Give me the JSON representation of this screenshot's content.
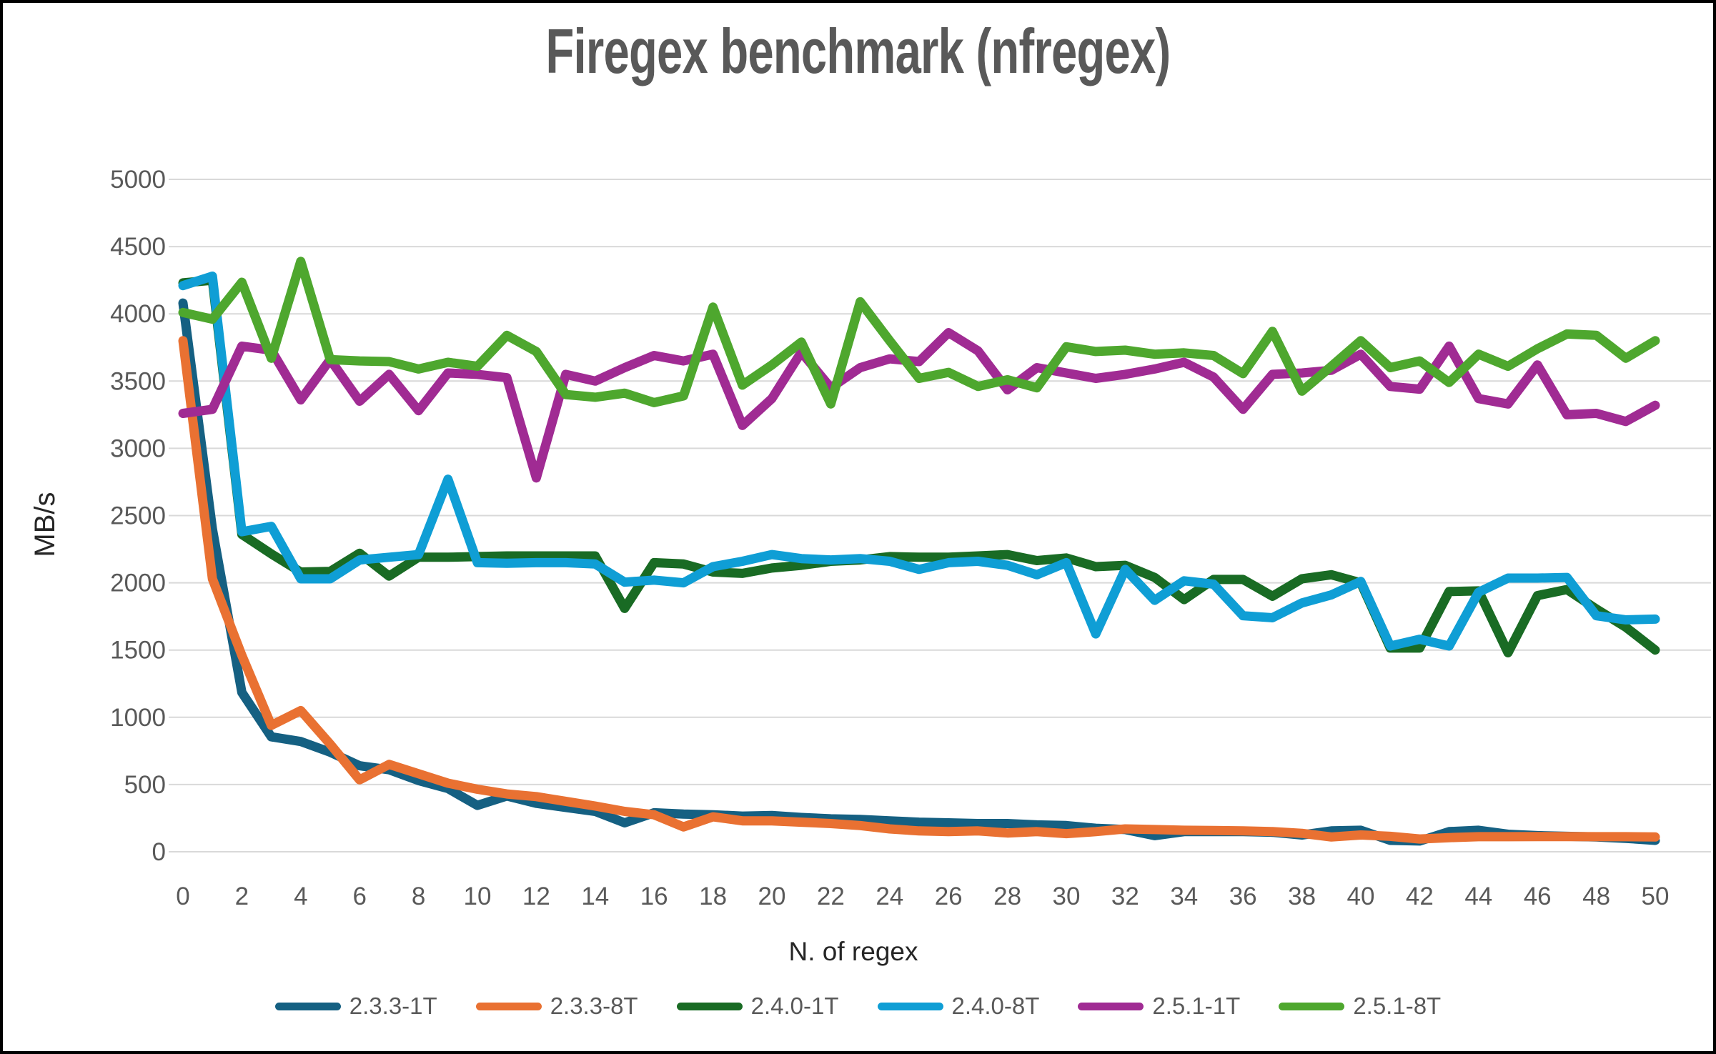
{
  "styles": {
    "background": "#FFFFFF",
    "frame_border_color": "#000000",
    "title_color": "#595959",
    "tick_label_color": "#595959",
    "axis_title_color": "#262626",
    "grid_color": "#D9D9D9"
  },
  "chart_data": {
    "type": "line",
    "title": "Firegex benchmark (nfregex)",
    "xlabel": "N. of regex",
    "ylabel": "MB/s",
    "xlim": [
      0,
      50
    ],
    "ylim": [
      0,
      5000
    ],
    "xticks": [
      0,
      2,
      4,
      6,
      8,
      10,
      12,
      14,
      16,
      18,
      20,
      22,
      24,
      26,
      28,
      30,
      32,
      34,
      36,
      38,
      40,
      42,
      44,
      46,
      48,
      50
    ],
    "yticks": [
      0,
      500,
      1000,
      1500,
      2000,
      2500,
      3000,
      3500,
      4000,
      4500,
      5000
    ],
    "grid": "horizontal",
    "legend_position": "bottom",
    "x": [
      0,
      1,
      2,
      3,
      4,
      5,
      6,
      7,
      8,
      9,
      10,
      11,
      12,
      13,
      14,
      15,
      16,
      17,
      18,
      19,
      20,
      21,
      22,
      23,
      24,
      25,
      26,
      27,
      28,
      29,
      30,
      31,
      32,
      33,
      34,
      35,
      36,
      37,
      38,
      39,
      40,
      41,
      42,
      43,
      44,
      45,
      46,
      47,
      48,
      49,
      50
    ],
    "series": [
      {
        "name": "2.3.3-1T",
        "color": "#156082",
        "values": [
          4080,
          2400,
          1185,
          855,
          820,
          740,
          640,
          610,
          530,
          470,
          345,
          415,
          360,
          330,
          300,
          215,
          290,
          280,
          275,
          265,
          270,
          255,
          245,
          240,
          230,
          220,
          215,
          210,
          210,
          200,
          195,
          175,
          165,
          120,
          150,
          150,
          150,
          145,
          125,
          155,
          160,
          85,
          80,
          150,
          160,
          130,
          120,
          115,
          110,
          100,
          85
        ]
      },
      {
        "name": "2.3.3-8T",
        "color": "#E97132",
        "values": [
          3800,
          2030,
          1460,
          940,
          1050,
          800,
          535,
          650,
          580,
          510,
          465,
          430,
          410,
          375,
          340,
          300,
          275,
          185,
          260,
          230,
          230,
          220,
          210,
          195,
          170,
          155,
          150,
          155,
          140,
          150,
          135,
          150,
          170,
          165,
          160,
          158,
          155,
          150,
          137,
          110,
          125,
          115,
          95,
          105,
          112,
          112,
          113,
          113,
          112,
          112,
          110
        ]
      },
      {
        "name": "2.4.0-1T",
        "color": "#196B24",
        "values": [
          4230,
          4250,
          2360,
          2215,
          2080,
          2085,
          2220,
          2050,
          2190,
          2190,
          2195,
          2200,
          2200,
          2200,
          2200,
          1810,
          2150,
          2140,
          2080,
          2070,
          2110,
          2130,
          2160,
          2170,
          2195,
          2190,
          2190,
          2200,
          2210,
          2165,
          2185,
          2120,
          2130,
          2040,
          1875,
          2025,
          2025,
          1900,
          2030,
          2060,
          2000,
          1515,
          1515,
          1935,
          1940,
          1480,
          1905,
          1950,
          1805,
          1670,
          1500
        ]
      },
      {
        "name": "2.4.0-8T",
        "color": "#0F9ED5",
        "values": [
          4210,
          4280,
          2380,
          2420,
          2030,
          2030,
          2170,
          2190,
          2210,
          2770,
          2150,
          2145,
          2150,
          2150,
          2140,
          2005,
          2020,
          2000,
          2120,
          2160,
          2210,
          2180,
          2170,
          2180,
          2160,
          2100,
          2150,
          2160,
          2130,
          2060,
          2150,
          1620,
          2100,
          1870,
          2015,
          1990,
          1755,
          1740,
          1850,
          1910,
          2010,
          1530,
          1580,
          1530,
          1930,
          2035,
          2035,
          2040,
          1755,
          1725,
          1730
        ]
      },
      {
        "name": "2.5.1-1T",
        "color": "#A02B93",
        "values": [
          3260,
          3290,
          3760,
          3730,
          3360,
          3660,
          3350,
          3550,
          3280,
          3560,
          3550,
          3525,
          2780,
          3550,
          3500,
          3600,
          3690,
          3650,
          3700,
          3170,
          3370,
          3715,
          3450,
          3600,
          3665,
          3645,
          3860,
          3725,
          3435,
          3600,
          3560,
          3520,
          3550,
          3590,
          3640,
          3530,
          3290,
          3550,
          3560,
          3580,
          3700,
          3460,
          3440,
          3760,
          3370,
          3330,
          3620,
          3250,
          3260,
          3200,
          3320
        ]
      },
      {
        "name": "2.5.1-8T",
        "color": "#4EA72E",
        "values": [
          4010,
          3960,
          4235,
          3670,
          4390,
          3660,
          3650,
          3645,
          3590,
          3640,
          3610,
          3840,
          3720,
          3400,
          3380,
          3410,
          3340,
          3390,
          4050,
          3470,
          3620,
          3790,
          3330,
          4090,
          3800,
          3520,
          3565,
          3460,
          3510,
          3450,
          3755,
          3720,
          3730,
          3700,
          3710,
          3690,
          3555,
          3870,
          3425,
          3610,
          3800,
          3600,
          3650,
          3490,
          3700,
          3610,
          3740,
          3850,
          3840,
          3670,
          3800
        ]
      }
    ]
  }
}
